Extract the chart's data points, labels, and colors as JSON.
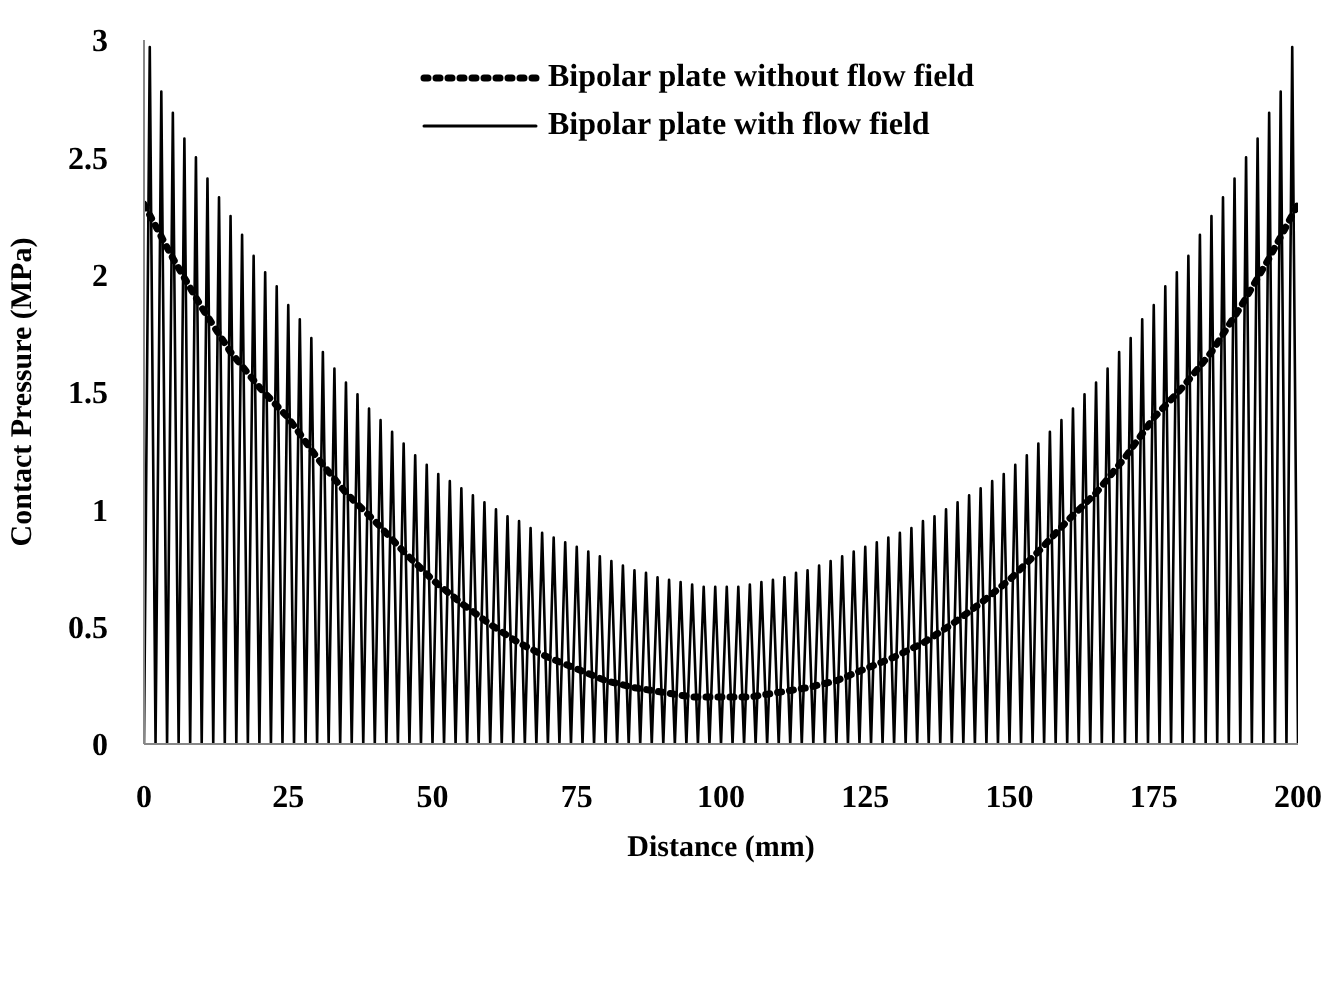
{
  "chart_data": {
    "type": "line",
    "xlabel": "Distance (mm)",
    "ylabel": "Contact Pressure (MPa)",
    "xlim": [
      0,
      200
    ],
    "xticks": [
      0,
      25,
      50,
      75,
      100,
      125,
      150,
      175,
      200
    ],
    "ylim": [
      0,
      3
    ],
    "yticks": [
      0,
      0.5,
      1,
      1.5,
      2,
      2.5,
      3
    ],
    "grid": false,
    "legend": "top right",
    "marker": "none",
    "series": [
      {
        "name": "Bipolar plate without flow field",
        "color": "#000000",
        "line_style": "dotted",
        "x": [
          0,
          5,
          10,
          15,
          20,
          25,
          30,
          35,
          40,
          45,
          50,
          55,
          60,
          65,
          70,
          75,
          80,
          85,
          90,
          95,
          100,
          105,
          110,
          115,
          120,
          125,
          130,
          135,
          140,
          145,
          150,
          155,
          160,
          165,
          170,
          175,
          180,
          185,
          190,
          195,
          200
        ],
        "values": [
          2.3,
          2.07,
          1.86,
          1.67,
          1.52,
          1.39,
          1.22,
          1.07,
          0.95,
          0.82,
          0.7,
          0.6,
          0.51,
          0.43,
          0.37,
          0.32,
          0.27,
          0.24,
          0.22,
          0.2,
          0.2,
          0.2,
          0.22,
          0.24,
          0.27,
          0.32,
          0.37,
          0.43,
          0.51,
          0.6,
          0.7,
          0.82,
          0.95,
          1.07,
          1.22,
          1.39,
          1.52,
          1.67,
          1.86,
          2.07,
          2.3
        ]
      },
      {
        "name": "Bipolar plate with flow field",
        "color": "#000000",
        "line_style": "solid",
        "x": [
          0,
          1,
          2,
          3,
          4,
          5,
          6,
          7,
          8,
          9,
          10,
          11,
          12,
          13,
          14,
          15,
          16,
          17,
          18,
          19,
          20,
          21,
          22,
          23,
          24,
          25,
          26,
          27,
          28,
          29,
          30,
          31,
          32,
          33,
          34,
          35,
          36,
          37,
          38,
          39,
          40,
          41,
          42,
          43,
          44,
          45,
          46,
          47,
          48,
          49,
          50,
          51,
          52,
          53,
          54,
          55,
          56,
          57,
          58,
          59,
          60,
          61,
          62,
          63,
          64,
          65,
          66,
          67,
          68,
          69,
          70,
          71,
          72,
          73,
          74,
          75,
          76,
          77,
          78,
          79,
          80,
          81,
          82,
          83,
          84,
          85,
          86,
          87,
          88,
          89,
          90,
          91,
          92,
          93,
          94,
          95,
          96,
          97,
          98,
          99,
          100,
          101,
          102,
          103,
          104,
          105,
          106,
          107,
          108,
          109,
          110,
          111,
          112,
          113,
          114,
          115,
          116,
          117,
          118,
          119,
          120,
          121,
          122,
          123,
          124,
          125,
          126,
          127,
          128,
          129,
          130,
          131,
          132,
          133,
          134,
          135,
          136,
          137,
          138,
          139,
          140,
          141,
          142,
          143,
          144,
          145,
          146,
          147,
          148,
          149,
          150,
          151,
          152,
          153,
          154,
          155,
          156,
          157,
          158,
          159,
          160,
          161,
          162,
          163,
          164,
          165,
          166,
          167,
          168,
          169,
          170,
          171,
          172,
          173,
          174,
          175,
          176,
          177,
          178,
          179,
          180,
          181,
          182,
          183,
          184,
          185,
          186,
          187,
          188,
          189,
          190,
          191,
          192,
          193,
          194,
          195,
          196,
          197,
          198,
          199,
          200
        ],
        "values": [
          0,
          2.97,
          0,
          2.78,
          0,
          2.69,
          0,
          2.58,
          0,
          2.5,
          0,
          2.41,
          0,
          2.33,
          0,
          2.25,
          0,
          2.17,
          0,
          2.08,
          0,
          2.01,
          0,
          1.95,
          0,
          1.87,
          0,
          1.81,
          0,
          1.73,
          0,
          1.67,
          0,
          1.6,
          0,
          1.54,
          0,
          1.49,
          0,
          1.43,
          0,
          1.38,
          0,
          1.33,
          0,
          1.28,
          0,
          1.23,
          0,
          1.19,
          0,
          1.15,
          0,
          1.12,
          0,
          1.09,
          0,
          1.06,
          0,
          1.03,
          0,
          1,
          0,
          0.97,
          0,
          0.95,
          0,
          0.92,
          0,
          0.9,
          0,
          0.88,
          0,
          0.86,
          0,
          0.84,
          0,
          0.82,
          0,
          0.8,
          0,
          0.78,
          0,
          0.76,
          0,
          0.74,
          0,
          0.73,
          0,
          0.71,
          0,
          0.7,
          0,
          0.69,
          0,
          0.68,
          0,
          0.67,
          0,
          0.67,
          0,
          0.67,
          0,
          0.67,
          0,
          0.68,
          0,
          0.69,
          0,
          0.7,
          0,
          0.71,
          0,
          0.73,
          0,
          0.74,
          0,
          0.76,
          0,
          0.78,
          0,
          0.8,
          0,
          0.82,
          0,
          0.84,
          0,
          0.86,
          0,
          0.88,
          0,
          0.9,
          0,
          0.92,
          0,
          0.95,
          0,
          0.97,
          0,
          1,
          0,
          1.03,
          0,
          1.06,
          0,
          1.09,
          0,
          1.12,
          0,
          1.15,
          0,
          1.19,
          0,
          1.23,
          0,
          1.28,
          0,
          1.33,
          0,
          1.38,
          0,
          1.43,
          0,
          1.49,
          0,
          1.54,
          0,
          1.6,
          0,
          1.67,
          0,
          1.73,
          0,
          1.81,
          0,
          1.87,
          0,
          1.95,
          0,
          2.01,
          0,
          2.08,
          0,
          2.17,
          0,
          2.25,
          0,
          2.33,
          0,
          2.41,
          0,
          2.5,
          0,
          2.58,
          0,
          2.69,
          0,
          2.78,
          0,
          2.97,
          0
        ]
      }
    ]
  }
}
